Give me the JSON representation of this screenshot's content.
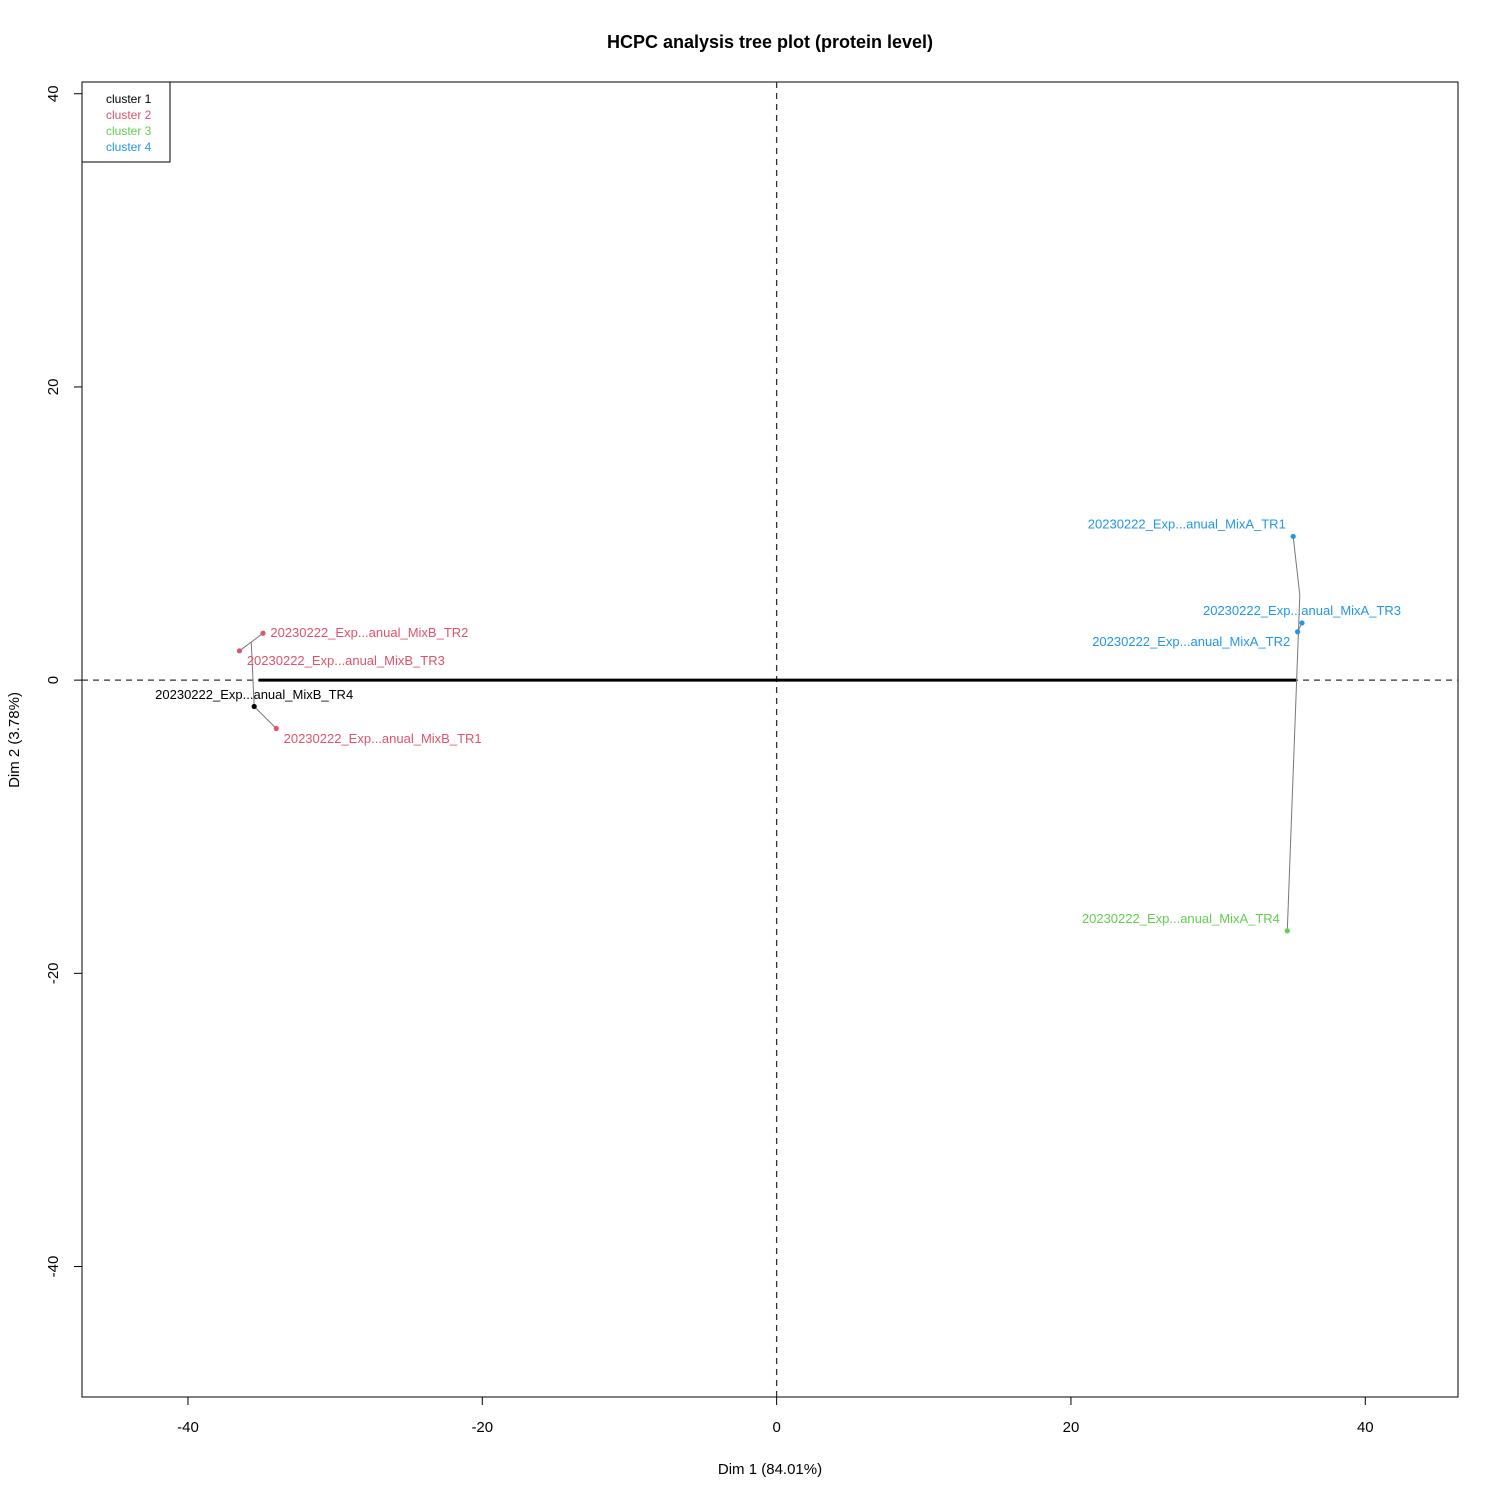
{
  "chart_data": {
    "type": "scatter",
    "title": "HCPC analysis tree plot (protein level)",
    "xlabel": "Dim 1 (84.01%)",
    "ylabel": "Dim 2 (3.78%)",
    "xlim": [
      -47.2,
      46.3
    ],
    "ylim": [
      -48.9,
      40.8
    ],
    "x_ticks": [
      -40,
      -20,
      0,
      20,
      40
    ],
    "y_ticks": [
      -40,
      -20,
      0,
      20,
      40
    ],
    "grid": false,
    "reference_lines": {
      "x": 0,
      "y": 0,
      "style": "dashed"
    },
    "legend": {
      "position": "top-left",
      "entries": [
        {
          "label": "cluster 1",
          "color": "#000000"
        },
        {
          "label": "cluster 2",
          "color": "#DF536B"
        },
        {
          "label": "cluster 3",
          "color": "#61D04F"
        },
        {
          "label": "cluster 4",
          "color": "#2297E6"
        }
      ]
    },
    "points": [
      {
        "label": "20230222_Exp...anual_MixB_TR2",
        "x": -34.9,
        "y": 3.2,
        "cluster": 2,
        "anchor": "start",
        "dx": 0.5,
        "dy": 0.0
      },
      {
        "label": "20230222_Exp...anual_MixB_TR3",
        "x": -36.5,
        "y": 2.0,
        "cluster": 2,
        "anchor": "start",
        "dx": 0.5,
        "dy": -0.7
      },
      {
        "label": "20230222_Exp...anual_MixB_TR4",
        "x": -35.5,
        "y": -1.8,
        "cluster": 1,
        "anchor": "middle",
        "dx": 0.0,
        "dy": 0.8
      },
      {
        "label": "20230222_Exp...anual_MixB_TR1",
        "x": -34.0,
        "y": -3.3,
        "cluster": 2,
        "anchor": "start",
        "dx": 0.5,
        "dy": -0.7
      },
      {
        "label": "20230222_Exp...anual_MixA_TR1",
        "x": 35.1,
        "y": 9.8,
        "cluster": 4,
        "anchor": "end",
        "dx": -0.5,
        "dy": 0.8
      },
      {
        "label": "20230222_Exp...anual_MixA_TR3",
        "x": 35.7,
        "y": 3.9,
        "cluster": 4,
        "anchor": "middle",
        "dx": 0.0,
        "dy": 0.8
      },
      {
        "label": "20230222_Exp...anual_MixA_TR2",
        "x": 35.4,
        "y": 3.3,
        "cluster": 4,
        "anchor": "end",
        "dx": -0.5,
        "dy": -0.7
      },
      {
        "label": "20230222_Exp...anual_MixA_TR4",
        "x": 34.7,
        "y": -17.1,
        "cluster": 3,
        "anchor": "end",
        "dx": -0.5,
        "dy": 0.8
      }
    ],
    "tree_links": [
      {
        "from": [
          -34.9,
          3.2
        ],
        "to": [
          -36.5,
          2.0
        ]
      },
      {
        "from": [
          -35.7,
          2.6
        ],
        "to": [
          -35.5,
          -1.8
        ]
      },
      {
        "from": [
          -35.5,
          -1.8
        ],
        "to": [
          -34.0,
          -3.3
        ]
      },
      {
        "from": [
          35.7,
          3.9
        ],
        "to": [
          35.4,
          3.3
        ]
      },
      {
        "from": [
          35.1,
          9.8
        ],
        "to": [
          35.55,
          5.8
        ]
      },
      {
        "from": [
          35.55,
          5.8
        ],
        "to": [
          34.7,
          -17.1
        ]
      }
    ],
    "tree_root": {
      "from": [
        -35.2,
        0
      ],
      "to": [
        35.3,
        0
      ]
    }
  }
}
